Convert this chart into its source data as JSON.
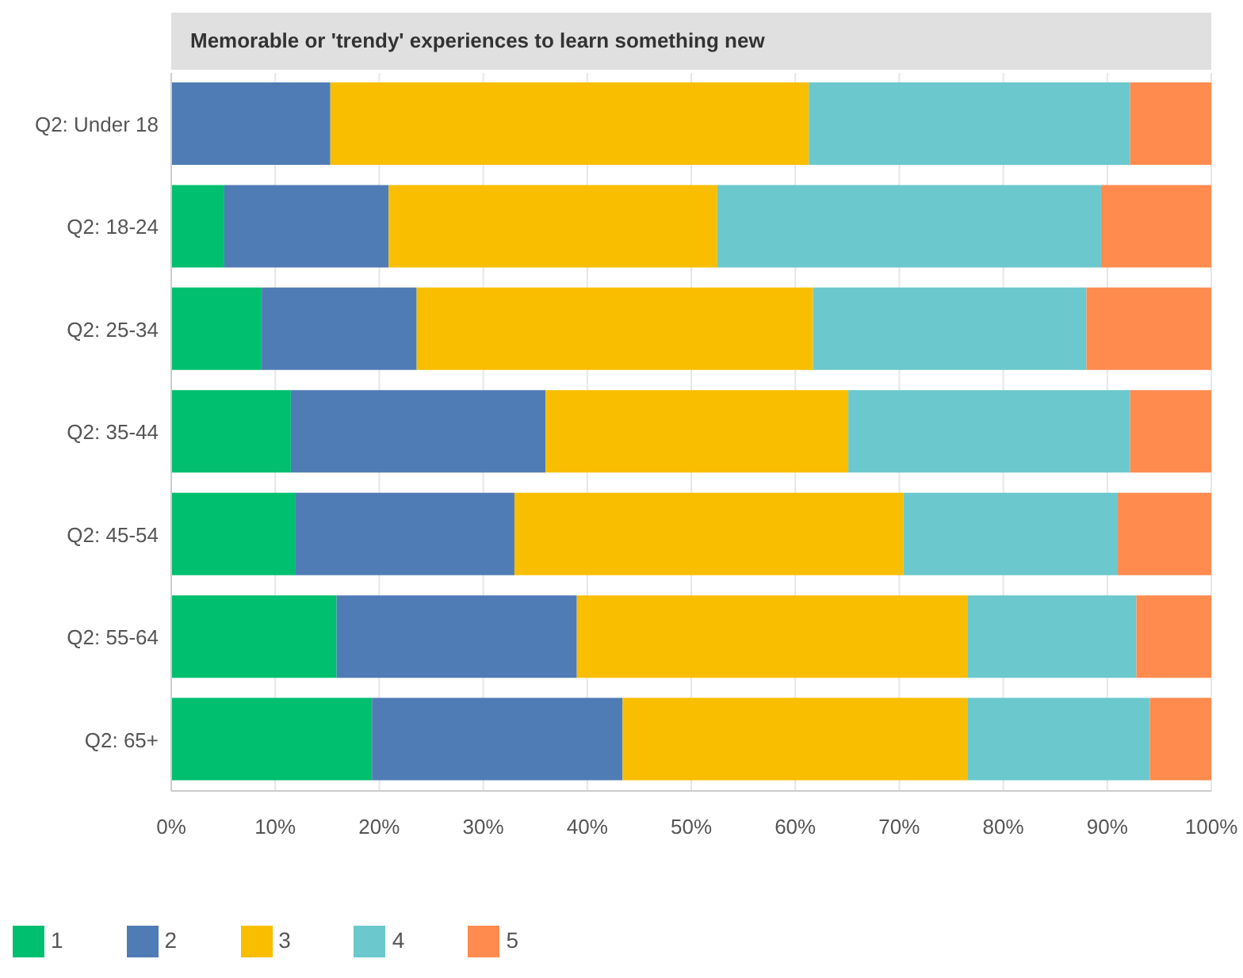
{
  "chart_data": {
    "type": "bar",
    "orientation": "horizontal",
    "stacked": true,
    "title": "Memorable or 'trendy' experiences to learn something new",
    "categories": [
      "Q2: Under 18",
      "Q2: 18-24",
      "Q2: 25-34",
      "Q2: 35-44",
      "Q2: 45-54",
      "Q2: 55-64",
      "Q2: 65+"
    ],
    "series": [
      {
        "name": "1",
        "color": "#00bf6f",
        "values": [
          0,
          5.1,
          8.7,
          11.5,
          11.9,
          15.9,
          19.3
        ]
      },
      {
        "name": "2",
        "color": "#507cb6",
        "values": [
          15.3,
          15.8,
          14.9,
          24.5,
          21.1,
          23.1,
          24.1
        ]
      },
      {
        "name": "3",
        "color": "#f9be00",
        "values": [
          46.0,
          31.6,
          38.1,
          29.1,
          37.4,
          37.6,
          33.2
        ]
      },
      {
        "name": "4",
        "color": "#6bc8cd",
        "values": [
          30.9,
          36.9,
          26.3,
          27.1,
          20.6,
          16.2,
          17.5
        ]
      },
      {
        "name": "5",
        "color": "#ff8b4f",
        "values": [
          7.8,
          10.6,
          12.0,
          7.8,
          9.0,
          7.2,
          5.9
        ]
      }
    ],
    "xlim": [
      0,
      100
    ],
    "xticks": [
      {
        "value": 0,
        "label": "0%"
      },
      {
        "value": 10,
        "label": "10%"
      },
      {
        "value": 20,
        "label": "20%"
      },
      {
        "value": 30,
        "label": "30%"
      },
      {
        "value": 40,
        "label": "40%"
      },
      {
        "value": 50,
        "label": "50%"
      },
      {
        "value": 60,
        "label": "60%"
      },
      {
        "value": 70,
        "label": "70%"
      },
      {
        "value": 80,
        "label": "80%"
      },
      {
        "value": 90,
        "label": "90%"
      },
      {
        "value": 100,
        "label": "100%"
      }
    ],
    "grid": "x",
    "legend": "bottom left"
  }
}
